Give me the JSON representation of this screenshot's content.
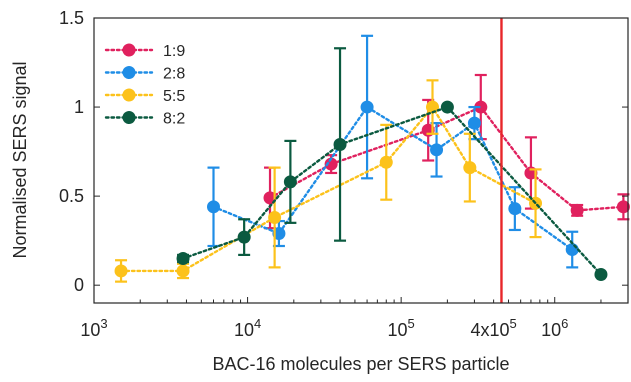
{
  "chart_data": {
    "type": "line",
    "xlabel": "BAC-16 molecules per SERS particle",
    "ylabel": "Normalised SERS signal",
    "x_scale": "log",
    "xlim": [
      1000,
      3000000
    ],
    "ylim": [
      -0.1,
      1.5
    ],
    "x_ticks": [
      {
        "value": 1000,
        "base": "10",
        "exp": "3",
        "coef": ""
      },
      {
        "value": 10000,
        "base": "10",
        "exp": "4",
        "coef": ""
      },
      {
        "value": 100000,
        "base": "10",
        "exp": "5",
        "coef": ""
      },
      {
        "value": 400000,
        "base": "10",
        "exp": "5",
        "coef": "4x"
      },
      {
        "value": 1000000,
        "base": "10",
        "exp": "6",
        "coef": ""
      }
    ],
    "y_ticks": [
      {
        "value": 0,
        "label": "0"
      },
      {
        "value": 0.5,
        "label": "0.5"
      },
      {
        "value": 1,
        "label": "1"
      },
      {
        "value": 1.5,
        "label": "1.5"
      }
    ],
    "grid": false,
    "legend_position": "top-left",
    "vline": {
      "x": 450000,
      "color": "#e8262a"
    },
    "series": [
      {
        "name": "1:9",
        "color": "#e0215e",
        "points": [
          {
            "x": 14000,
            "y": 0.49,
            "err": 0.17
          },
          {
            "x": 35000,
            "y": 0.68,
            "err": 0.05
          },
          {
            "x": 150000,
            "y": 0.87,
            "err": 0.17
          },
          {
            "x": 330000,
            "y": 1.0,
            "err": 0.18
          },
          {
            "x": 700000,
            "y": 0.63,
            "err": 0.2
          },
          {
            "x": 1400000,
            "y": 0.42,
            "err": 0.03
          },
          {
            "x": 2800000,
            "y": 0.44,
            "err": 0.07
          }
        ]
      },
      {
        "name": "2:8",
        "color": "#1f8de6",
        "points": [
          {
            "x": 6000,
            "y": 0.44,
            "err": 0.22
          },
          {
            "x": 16000,
            "y": 0.29,
            "err": 0.07
          },
          {
            "x": 60000,
            "y": 1.0,
            "err": 0.4
          },
          {
            "x": 170000,
            "y": 0.76,
            "err": 0.15
          },
          {
            "x": 300000,
            "y": 0.91,
            "err": 0.09
          },
          {
            "x": 550000,
            "y": 0.43,
            "err": 0.12
          },
          {
            "x": 1300000,
            "y": 0.2,
            "err": 0.1
          }
        ]
      },
      {
        "name": "5:5",
        "color": "#fcc21b",
        "points": [
          {
            "x": 1500,
            "y": 0.08,
            "err": 0.06
          },
          {
            "x": 3800,
            "y": 0.08,
            "err": 0.04
          },
          {
            "x": 15000,
            "y": 0.38,
            "err": 0.28
          },
          {
            "x": 80000,
            "y": 0.69,
            "err": 0.21
          },
          {
            "x": 160000,
            "y": 1.0,
            "err": 0.15
          },
          {
            "x": 280000,
            "y": 0.66,
            "err": 0.19
          },
          {
            "x": 750000,
            "y": 0.46,
            "err": 0.19
          }
        ]
      },
      {
        "name": "8:2",
        "color": "#0b5a40",
        "points": [
          {
            "x": 3800,
            "y": 0.15,
            "err": 0.02
          },
          {
            "x": 9500,
            "y": 0.27,
            "err": 0.1
          },
          {
            "x": 19000,
            "y": 0.58,
            "err": 0.23
          },
          {
            "x": 40000,
            "y": 0.79,
            "err": 0.54
          },
          {
            "x": 200000,
            "y": 1.0,
            "err": 0.0
          },
          {
            "x": 2000000,
            "y": 0.06,
            "err": 0.0
          }
        ]
      }
    ]
  }
}
